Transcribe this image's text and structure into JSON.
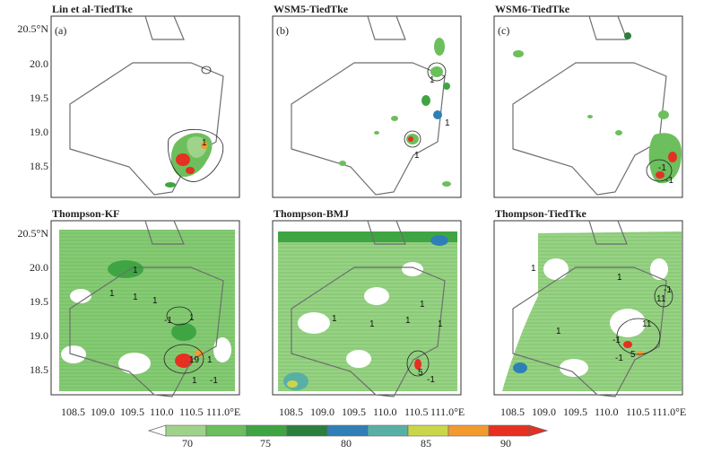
{
  "panels": [
    {
      "title": "Lin et al-TiedTke",
      "tag": "(a)"
    },
    {
      "title": "WSM5-TiedTke",
      "tag": "(b)"
    },
    {
      "title": "WSM6-TiedTke",
      "tag": "(c)"
    },
    {
      "title": "Thompson-KF",
      "tag": ""
    },
    {
      "title": "Thompson-BMJ",
      "tag": ""
    },
    {
      "title": "Thompson-TiedTke",
      "tag": ""
    }
  ],
  "y_ticks": [
    "20.5°N",
    "20.0",
    "19.5",
    "19.0",
    "18.5"
  ],
  "x_ticks": [
    "108.5",
    "109.0",
    "109.5",
    "110.0",
    "110.5",
    "111.0°E"
  ],
  "contour_labels": [
    "1",
    "-1",
    "5",
    "19",
    "11"
  ],
  "colorbar": {
    "labels": [
      "70",
      "75",
      "80",
      "85",
      "90"
    ],
    "colors": [
      "#ffffff",
      "#9fd38a",
      "#6cbf5c",
      "#3fa543",
      "#2b7f3c",
      "#2f7fb7",
      "#58b0a5",
      "#c9d64a",
      "#f39a2f",
      "#e53022"
    ]
  },
  "colors": {
    "coast": "#6e6e6e",
    "frame": "#333333",
    "contour": "#222222"
  }
}
